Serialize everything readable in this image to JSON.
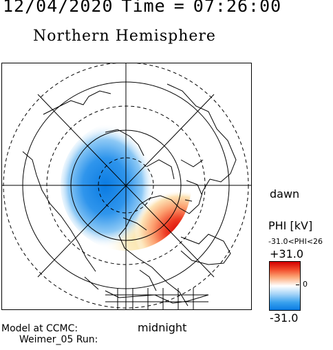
{
  "header": {
    "date": "12/04/2020",
    "time_label": "Time",
    "equals": "=",
    "time": "07:26:00"
  },
  "title": "Northern Hemisphere",
  "labels": {
    "dawn": "dawn",
    "midnight": "midnight",
    "model_line_1": "Model at CCMC:",
    "model_line_2": "Weimer_05 Run:"
  },
  "colorbar": {
    "title": "PHI [kV]",
    "range_text": "-31.0<PHI<26",
    "max_label": "+31.0",
    "zero_label": "0",
    "min_label": "-31.0",
    "max_value": 31.0,
    "min_value": -31.0,
    "positive_color": "#d40000",
    "negative_color": "#0a7be2"
  }
}
